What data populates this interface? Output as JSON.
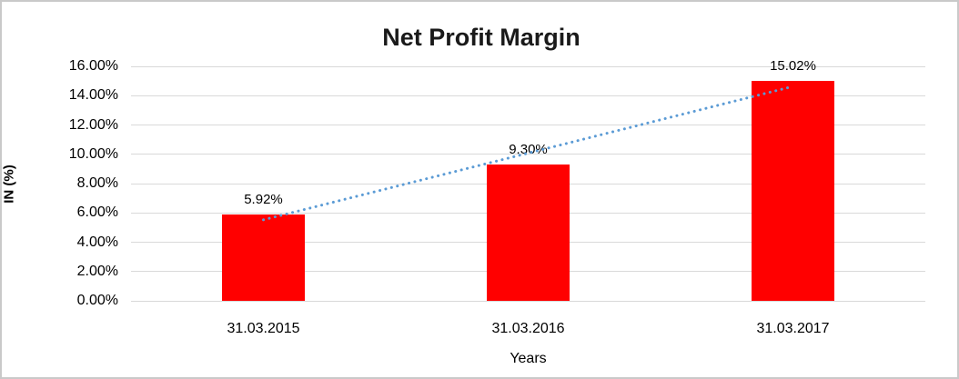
{
  "window": {
    "background": "#ffffff",
    "frame_border_color": "#c9c9c9"
  },
  "chart_data": {
    "type": "bar",
    "title": "Net Profit Margin",
    "xlabel": "Years",
    "ylabel": "IN (%)",
    "categories": [
      "31.03.2015",
      "31.03.2016",
      "31.03.2017"
    ],
    "values": [
      5.92,
      9.3,
      15.02
    ],
    "data_labels": [
      "5.92%",
      "9.30%",
      "15.02%"
    ],
    "ylim": [
      0,
      16
    ],
    "ytick_step": 2,
    "ytick_labels": [
      "0.00%",
      "2.00%",
      "4.00%",
      "6.00%",
      "8.00%",
      "10.00%",
      "12.00%",
      "14.00%",
      "16.00%"
    ],
    "grid": true,
    "gridline_color": "#d9d9d9",
    "bar_color": "#ff0000",
    "legend": "none",
    "trendline": {
      "type": "linear",
      "style": "dotted",
      "color": "#5b9bd5"
    }
  }
}
